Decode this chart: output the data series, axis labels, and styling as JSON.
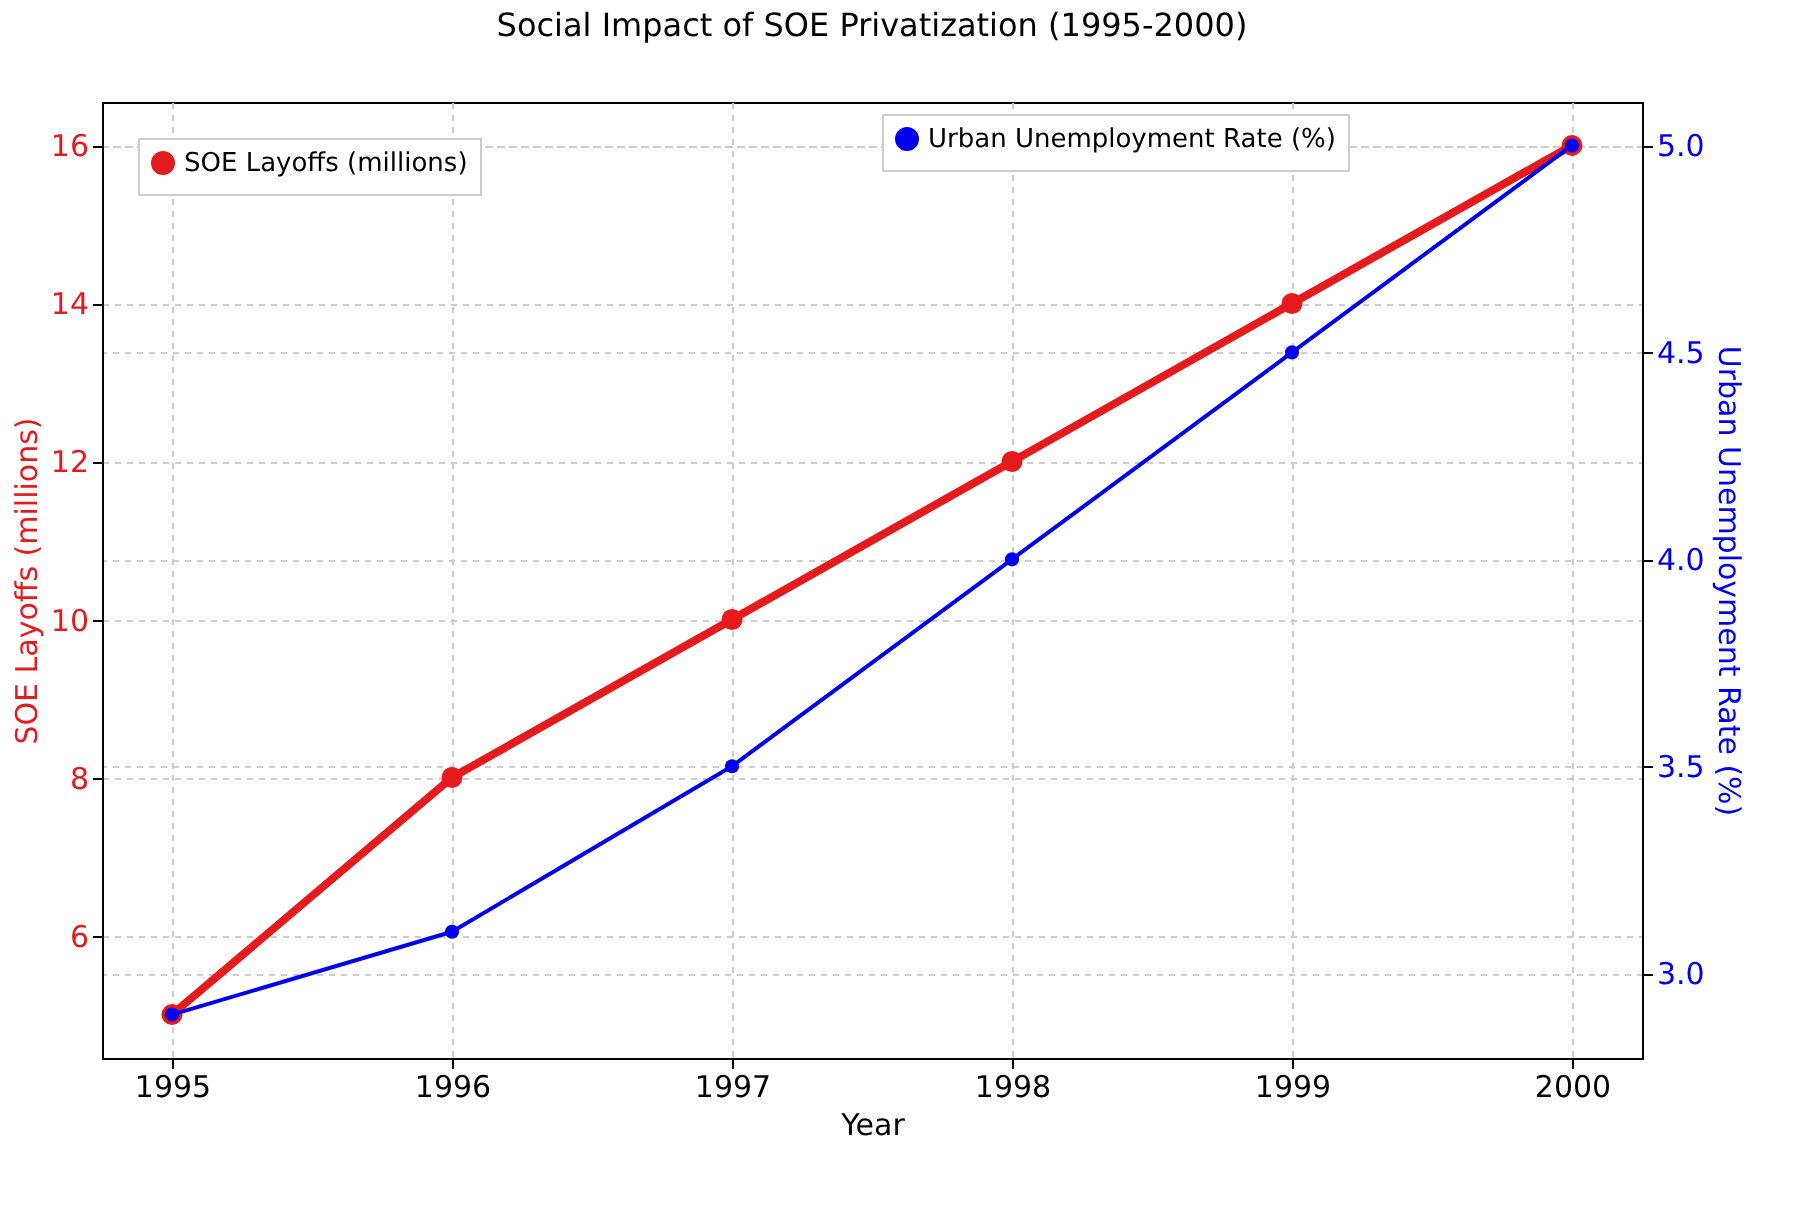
{
  "chart_data": {
    "type": "line",
    "title": "Social Impact of SOE Privatization (1995-2000)",
    "xlabel": "Year",
    "ylabel": "SOE Layoffs (millions)",
    "y2label": "Urban Unemployment Rate (%)",
    "x": [
      1995,
      1996,
      1997,
      1998,
      1999,
      2000
    ],
    "series": [
      {
        "name": "SOE Layoffs (millions)",
        "color": "#e41a1c",
        "values": [
          5,
          8,
          10,
          12,
          14,
          16
        ]
      },
      {
        "name": "Urban Unemployment Rate (%)",
        "color": "#0000ee",
        "values": [
          2.9,
          3.1,
          3.5,
          4.0,
          4.5,
          5.0
        ],
        "axis": "y2"
      }
    ],
    "xlim": [
      1994.75,
      2000.25
    ],
    "xticks": [
      1995,
      1996,
      1997,
      1998,
      1999,
      2000
    ],
    "ylim": [
      4.45,
      16.55
    ],
    "yticks": [
      6,
      8,
      10,
      12,
      14,
      16
    ],
    "y2lim": [
      2.795,
      5.105
    ],
    "y2ticks": [
      {
        "value": 3,
        "label": "3.0"
      },
      3.5,
      {
        "value": 4,
        "label": "4.0"
      },
      4.5,
      {
        "value": 5,
        "label": "5.0"
      }
    ],
    "grid": true,
    "legend": "top",
    "marker": "circle",
    "line_style": "solid"
  }
}
